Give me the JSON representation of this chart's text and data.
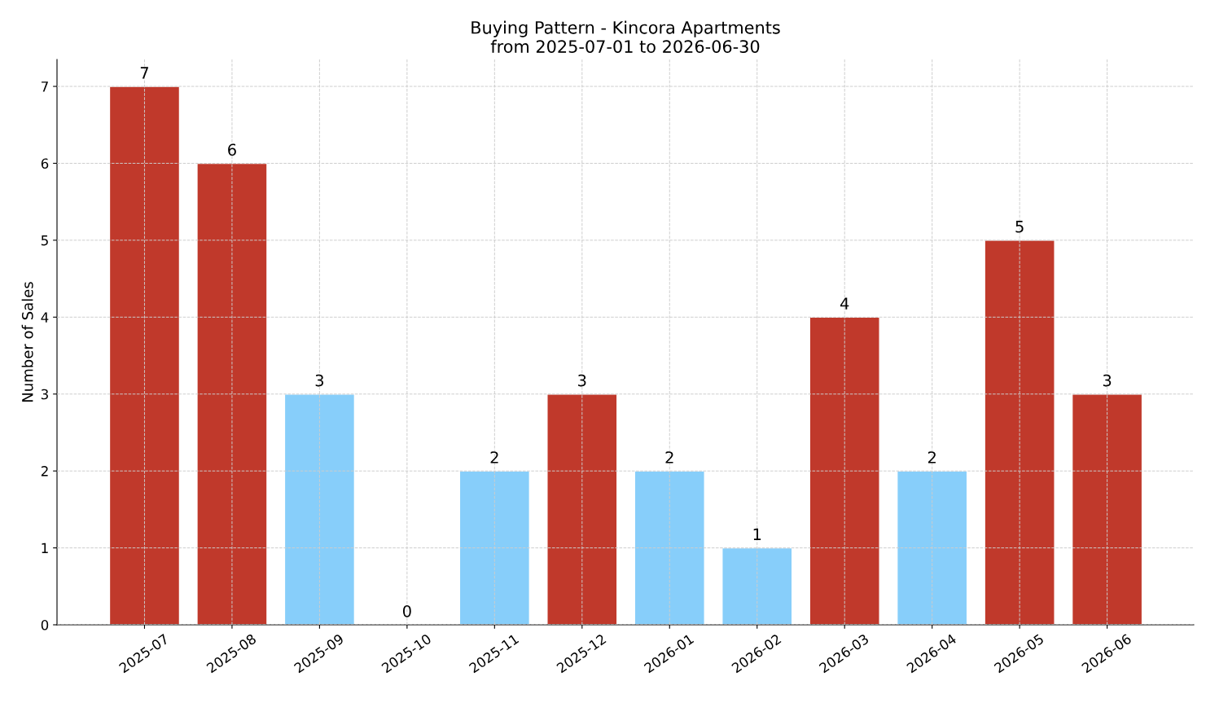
{
  "chart_data": {
    "type": "bar",
    "title": "Buying Pattern - Kincora Apartments\nfrom 2025-07-01 to 2026-06-30",
    "ylabel": "Number of Sales",
    "categories": [
      "2025-07",
      "2025-08",
      "2025-09",
      "2025-10",
      "2025-11",
      "2025-12",
      "2026-01",
      "2026-02",
      "2026-03",
      "2026-04",
      "2026-05",
      "2026-06"
    ],
    "values": [
      7,
      6,
      3,
      0,
      2,
      3,
      2,
      1,
      4,
      2,
      5,
      3
    ],
    "colors": [
      "#c0392b",
      "#c0392b",
      "#87cefa",
      null,
      "#87cefa",
      "#c0392b",
      "#87cefa",
      "#87cefa",
      "#c0392b",
      "#87cefa",
      "#c0392b",
      "#c0392b"
    ],
    "ylim": [
      0,
      7.35
    ],
    "yticks": [
      0,
      1,
      2,
      3,
      4,
      5,
      6,
      7
    ],
    "grid": true,
    "data_labels": true
  }
}
